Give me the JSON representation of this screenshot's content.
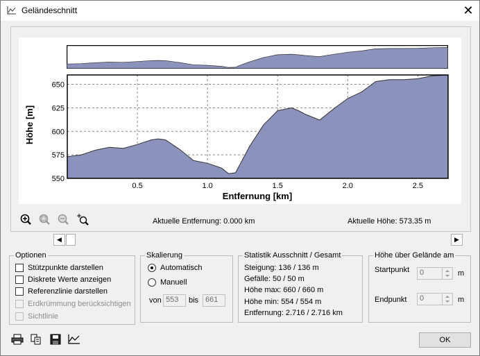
{
  "window": {
    "title": "Geländeschnitt",
    "close_glyph": "✕"
  },
  "chart_data": {
    "type": "area",
    "title": "",
    "xlabel": "Entfernung [km]",
    "ylabel": "Höhe [m]",
    "xlim": [
      0,
      2.716
    ],
    "ylim": [
      550,
      660
    ],
    "xticks": [
      "0.5",
      "1.0",
      "1.5",
      "2.0",
      "2.5"
    ],
    "yticks": [
      "550",
      "575",
      "600",
      "625",
      "650"
    ],
    "grid": true,
    "fill_color": "#8b93bd",
    "x": [
      0,
      0.1,
      0.2,
      0.3,
      0.4,
      0.5,
      0.6,
      0.65,
      0.7,
      0.8,
      0.9,
      1.0,
      1.1,
      1.15,
      1.2,
      1.25,
      1.3,
      1.4,
      1.5,
      1.6,
      1.65,
      1.7,
      1.8,
      1.9,
      2.0,
      2.1,
      2.2,
      2.3,
      2.4,
      2.5,
      2.6,
      2.716
    ],
    "y": [
      573,
      575,
      580,
      583,
      582,
      586,
      591,
      592,
      591,
      581,
      569,
      566,
      561,
      555,
      556,
      570,
      584,
      607,
      622,
      625,
      622,
      618,
      612,
      624,
      635,
      642,
      653,
      655,
      655,
      656,
      659,
      660
    ]
  },
  "overview": {
    "label": "profile-overview"
  },
  "toolbar": {
    "icons": [
      "zoom-in-icon",
      "zoom-window-icon",
      "zoom-out-icon",
      "zoom-reset-icon"
    ]
  },
  "status": {
    "distance": "Aktuelle Entfernung: 0.000 km",
    "height": "Aktuelle Höhe: 573.35 m"
  },
  "scroll": {
    "left": "◀",
    "right": "▶"
  },
  "options": {
    "legend": "Optionen",
    "items": [
      {
        "label": "Stützpunkte darstellen",
        "enabled": true
      },
      {
        "label": "Diskrete Werte anzeigen",
        "enabled": true
      },
      {
        "label": "Referenzlinie darstellen",
        "enabled": true
      },
      {
        "label": "Erdkrümmung berücksichtigen",
        "enabled": false
      },
      {
        "label": "Sichtlinie",
        "enabled": false
      }
    ]
  },
  "scaling": {
    "legend": "Skalierung",
    "auto": "Automatisch",
    "manual": "Manuell",
    "from_label": "von",
    "from_value": "553",
    "to_label": "bis",
    "to_value": "661"
  },
  "stats": {
    "legend": "Statistik   Ausschnitt / Gesamt",
    "lines": [
      "Steigung: 136 / 136 m",
      "Gefälle: 50 / 50 m",
      "Höhe max: 660 / 660 m",
      "Höhe min: 554 / 554 m",
      "Entfernung: 2.716 / 2.716 km"
    ]
  },
  "height_above": {
    "legend": "Höhe über Gelände am",
    "start_label": "Startpunkt",
    "start_value": "0",
    "end_label": "Endpunkt",
    "end_value": "0",
    "unit": "m"
  },
  "bottom": {
    "icons": [
      "print-icon",
      "copy-icon",
      "save-icon",
      "chart-icon"
    ],
    "ok": "OK"
  }
}
